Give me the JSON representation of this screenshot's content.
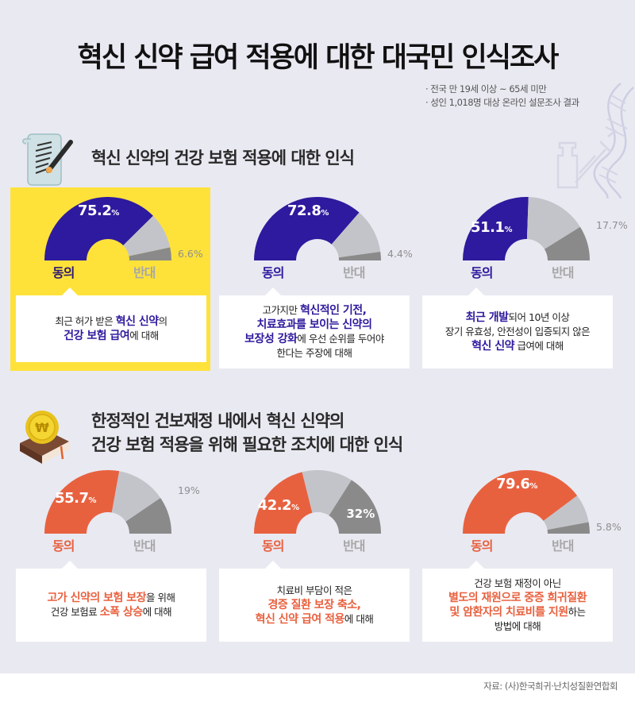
{
  "title": "혁신 신약 급여 적용에 대한 대국민 인식조사",
  "meta": [
    "· 전국 만 19세 이상 ~ 65세 미만",
    "· 성인 1,018명 대상 온라인 설문조사 결과"
  ],
  "labels": {
    "agree": "동의",
    "oppose": "반대",
    "unit": "%"
  },
  "colors": {
    "background": "#e9e9f2",
    "highlight_box": "#fee23a",
    "section1_agree": "#2e1a9e",
    "section2_agree": "#e8613f",
    "neutral": "#c3c4c9",
    "oppose": "#8a8a8a",
    "card": "#ffffff"
  },
  "sections": [
    {
      "heading": [
        "혁신 신약의 건강 보험 적용에 대한 인식"
      ],
      "icon": "document-pen-icon",
      "items": [
        {
          "agree": "75.2",
          "oppose": "6.6",
          "text": [
            [
              {
                "t": "최근 허가 받은 "
              },
              {
                "t": "혁신 신약",
                "h": true
              },
              {
                "t": "의"
              }
            ],
            [
              {
                "t": "건강 보험 급여",
                "h": true
              },
              {
                "t": "에 대해"
              }
            ]
          ]
        },
        {
          "agree": "72.8",
          "oppose": "4.4",
          "text": [
            [
              {
                "t": "고가지만 "
              },
              {
                "t": "혁신적인 기전,",
                "h": true
              }
            ],
            [
              {
                "t": "치료효과를 보이는 신약의",
                "h": true
              }
            ],
            [
              {
                "t": "보장성 강화",
                "h": true
              },
              {
                "t": "에 우선 순위를 두어야"
              }
            ],
            [
              {
                "t": "한다는 주장에 대해"
              }
            ]
          ]
        },
        {
          "agree": "51.1",
          "oppose": "17.7",
          "text": [
            [
              {
                "t": "최근 개발",
                "h": true
              },
              {
                "t": "되어 10년 이상"
              }
            ],
            [
              {
                "t": "장기 유효성, 안전성이 입증되지 않은"
              }
            ],
            [
              {
                "t": "혁신 신약",
                "h": true
              },
              {
                "t": " 급여에 대해"
              }
            ]
          ]
        }
      ]
    },
    {
      "heading": [
        "한정적인 건보재정 내에서 혁신 신약의",
        "건강 보험 적용을 위해 필요한 조치에 대한 인식"
      ],
      "icon": "coin-book-icon",
      "items": [
        {
          "agree": "55.7",
          "oppose": "19",
          "text": [
            [
              {
                "t": "고가 신약의 보험 보장",
                "h": true
              },
              {
                "t": "을 위해"
              }
            ],
            [
              {
                "t": "건강 보험료 "
              },
              {
                "t": "소폭 상승",
                "h": true
              },
              {
                "t": "에 대해"
              }
            ]
          ]
        },
        {
          "agree": "42.2",
          "oppose": "32",
          "text": [
            [
              {
                "t": "치료비 부담이 적은"
              }
            ],
            [
              {
                "t": "경증 질환 보장 축소,",
                "h": true
              }
            ],
            [
              {
                "t": "혁신 신약 급여 적용",
                "h": true
              },
              {
                "t": "에 대해"
              }
            ]
          ]
        },
        {
          "agree": "79.6",
          "oppose": "5.8",
          "text": [
            [
              {
                "t": "건강 보험 재정이 아닌"
              }
            ],
            [
              {
                "t": "별도의 재원으로 중증 희귀질환",
                "h": true
              }
            ],
            [
              {
                "t": "및 암환자의 치료비를 지원",
                "h": true
              },
              {
                "t": "하는"
              }
            ],
            [
              {
                "t": "방법에 대해"
              }
            ]
          ]
        }
      ]
    }
  ],
  "footer": "자료: (사)한국희귀·난치성질환연합회",
  "chart_data": [
    {
      "type": "pie",
      "subtype": "semicircle-gauge",
      "title": "혁신 신약의 건강 보험 적용에 대한 인식",
      "categories": [
        "최근 허가 받은 혁신 신약의 건강 보험 급여",
        "혁신적인 기전, 치료효과를 보이는 신약의 보장성 강화 우선",
        "장기 유효성, 안전성이 입증되지 않은 혁신 신약 급여"
      ],
      "series": [
        {
          "name": "동의",
          "values": [
            75.2,
            72.8,
            51.1
          ]
        },
        {
          "name": "반대",
          "values": [
            6.6,
            4.4,
            17.7
          ]
        }
      ],
      "unit": "%"
    },
    {
      "type": "pie",
      "subtype": "semicircle-gauge",
      "title": "한정적인 건보재정 내에서 혁신 신약의 건강 보험 적용을 위해 필요한 조치에 대한 인식",
      "categories": [
        "고가 신약의 보험 보장을 위해 건강 보험료 소폭 상승",
        "경증 질환 보장 축소, 혁신 신약 급여 적용",
        "별도의 재원으로 중증 희귀질환 및 암환자의 치료비를 지원"
      ],
      "series": [
        {
          "name": "동의",
          "values": [
            55.7,
            42.2,
            79.6
          ]
        },
        {
          "name": "반대",
          "values": [
            19,
            32,
            5.8
          ]
        }
      ],
      "unit": "%"
    }
  ]
}
